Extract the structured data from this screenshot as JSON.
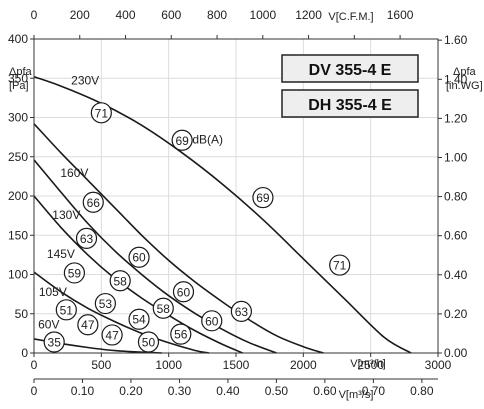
{
  "chart_data": {
    "type": "line",
    "models": [
      "DV 355-4 E",
      "DH 355-4 E"
    ],
    "unit_label": "dB(A)",
    "axes": {
      "x_bottom": {
        "label": "V[m³/h]",
        "range": [
          0,
          3000
        ],
        "ticks": [
          0,
          500,
          1000,
          1500,
          2000,
          2500,
          3000
        ]
      },
      "x_bottom2": {
        "label": "V[m³/s]",
        "range": [
          0,
          0.8333
        ],
        "ticks": [
          0,
          0.1,
          0.2,
          0.3,
          0.4,
          0.5,
          0.6,
          0.7,
          0.8
        ],
        "tick_labels": [
          "0",
          "0.10",
          "0.20",
          "0.30",
          "0.40",
          "0.50",
          "0.60",
          "0.70",
          "0.80"
        ]
      },
      "x_top": {
        "label": "V[C.F.M.]",
        "range": [
          0,
          1765.7
        ],
        "ticks": [
          0,
          200,
          400,
          600,
          800,
          1000,
          1200,
          1400,
          1600
        ],
        "tick_labels": [
          "0",
          "200",
          "400",
          "600",
          "800",
          "1000",
          "1200",
          "",
          "1600"
        ]
      },
      "y_left": {
        "label_line1": "Δpfa",
        "label_line2": "[Pa]",
        "range": [
          0,
          400
        ],
        "ticks": [
          0,
          50,
          100,
          150,
          200,
          250,
          300,
          350,
          400
        ]
      },
      "y_right": {
        "label_line1": "Δpfa",
        "label_line2": "[in.WG]",
        "range": [
          0,
          1.606
        ],
        "ticks": [
          0,
          0.2,
          0.4,
          0.6,
          0.8,
          1.0,
          1.2,
          1.4,
          1.6
        ],
        "tick_labels": [
          "0.00",
          "0.20",
          "0.40",
          "0.60",
          "0.80",
          "1.00",
          "1.20",
          "1.40",
          "1.60"
        ]
      }
    },
    "grid": true,
    "series": [
      {
        "name": "230V",
        "x": [
          0,
          200,
          500,
          800,
          1100,
          1400,
          1700,
          2000,
          2300,
          2600,
          2800
        ],
        "y": [
          352,
          340,
          318,
          290,
          255,
          215,
          170,
          120,
          70,
          20,
          0
        ]
      },
      {
        "name": "160V",
        "x": [
          0,
          200,
          400,
          600,
          800,
          1000,
          1200,
          1400,
          1600,
          1800,
          2000,
          2150
        ],
        "y": [
          292,
          255,
          220,
          185,
          150,
          118,
          90,
          65,
          42,
          22,
          8,
          0
        ]
      },
      {
        "name": "130V",
        "x": [
          0,
          200,
          400,
          600,
          800,
          1000,
          1200,
          1400,
          1600,
          1800
        ],
        "y": [
          246,
          205,
          165,
          130,
          100,
          73,
          50,
          30,
          13,
          0
        ]
      },
      {
        "name": "145V",
        "x": [
          0,
          200,
          400,
          600,
          800,
          1000,
          1200,
          1400,
          1550
        ],
        "y": [
          200,
          160,
          125,
          95,
          70,
          48,
          28,
          11,
          0
        ]
      },
      {
        "name": "105V",
        "x": [
          0,
          200,
          400,
          600,
          800,
          1000,
          1200,
          1300
        ],
        "y": [
          103,
          78,
          57,
          40,
          25,
          13,
          3,
          0
        ]
      },
      {
        "name": "60V",
        "x": [
          0,
          200,
          400,
          600,
          800,
          950
        ],
        "y": [
          18,
          12,
          7,
          3,
          1,
          0
        ]
      }
    ],
    "markers": [
      {
        "label": "71",
        "x": 500,
        "y": 306
      },
      {
        "label": "69",
        "x": 1100,
        "y": 271
      },
      {
        "label": "69",
        "x": 1700,
        "y": 198
      },
      {
        "label": "71",
        "x": 2270,
        "y": 112
      },
      {
        "label": "66",
        "x": 440,
        "y": 192
      },
      {
        "label": "63",
        "x": 390,
        "y": 146
      },
      {
        "label": "60",
        "x": 780,
        "y": 122
      },
      {
        "label": "58",
        "x": 640,
        "y": 92
      },
      {
        "label": "60",
        "x": 1110,
        "y": 78
      },
      {
        "label": "63",
        "x": 1540,
        "y": 53
      },
      {
        "label": "59",
        "x": 300,
        "y": 102
      },
      {
        "label": "53",
        "x": 530,
        "y": 63
      },
      {
        "label": "58",
        "x": 960,
        "y": 57
      },
      {
        "label": "54",
        "x": 780,
        "y": 43
      },
      {
        "label": "60",
        "x": 1320,
        "y": 41
      },
      {
        "label": "51",
        "x": 240,
        "y": 55
      },
      {
        "label": "47",
        "x": 400,
        "y": 36
      },
      {
        "label": "47",
        "x": 580,
        "y": 23
      },
      {
        "label": "56",
        "x": 1090,
        "y": 24
      },
      {
        "label": "50",
        "x": 850,
        "y": 14
      },
      {
        "label": "35",
        "x": 150,
        "y": 14
      }
    ],
    "curve_labels": [
      {
        "text": "230V",
        "x": 380,
        "y": 347
      },
      {
        "text": "dB(A)",
        "x": 1290,
        "y": 272
      },
      {
        "text": "160V",
        "x": 300,
        "y": 229
      },
      {
        "text": "130V",
        "x": 240,
        "y": 176
      },
      {
        "text": "145V",
        "x": 200,
        "y": 126
      },
      {
        "text": "105V",
        "x": 140,
        "y": 78
      },
      {
        "text": "60V",
        "x": 110,
        "y": 36
      }
    ],
    "colors": {
      "line": "#1a1a1a",
      "grid": "#dcdcdc",
      "marker_fill": "#ffffff",
      "model_box_fill": "#eeeeee"
    }
  }
}
